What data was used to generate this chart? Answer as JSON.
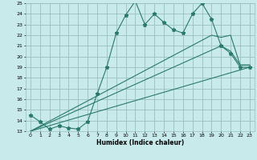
{
  "title": "",
  "xlabel": "Humidex (Indice chaleur)",
  "ylabel": "",
  "bg_color": "#c8eaea",
  "grid_color": "#9bbfbf",
  "line_color": "#2a7a6a",
  "xlim": [
    -0.5,
    23.5
  ],
  "ylim": [
    13,
    25
  ],
  "yticks": [
    13,
    14,
    15,
    16,
    17,
    18,
    19,
    20,
    21,
    22,
    23,
    24,
    25
  ],
  "xticks": [
    0,
    1,
    2,
    3,
    4,
    5,
    6,
    7,
    8,
    9,
    10,
    11,
    12,
    13,
    14,
    15,
    16,
    17,
    18,
    19,
    20,
    21,
    22,
    23
  ],
  "series1_x": [
    0,
    1,
    2,
    3,
    4,
    5,
    6,
    7,
    8,
    9,
    10,
    11,
    12,
    13,
    14,
    15,
    16,
    17,
    18,
    19,
    20,
    21,
    22,
    23
  ],
  "series1_y": [
    14.5,
    13.9,
    13.2,
    13.5,
    13.3,
    13.2,
    13.9,
    16.5,
    19.0,
    22.2,
    23.9,
    25.2,
    23.0,
    24.0,
    23.2,
    22.5,
    22.2,
    24.0,
    25.0,
    23.5,
    21.0,
    20.3,
    19.0,
    19.0
  ],
  "series2_x": [
    0,
    23
  ],
  "series2_y": [
    13.0,
    19.0
  ],
  "series3_x": [
    0,
    20,
    21,
    22,
    23
  ],
  "series3_y": [
    13.0,
    21.0,
    20.5,
    19.2,
    19.2
  ],
  "series4_x": [
    0,
    19,
    20,
    21,
    22,
    23
  ],
  "series4_y": [
    13.0,
    22.0,
    21.8,
    22.0,
    19.2,
    19.2
  ]
}
